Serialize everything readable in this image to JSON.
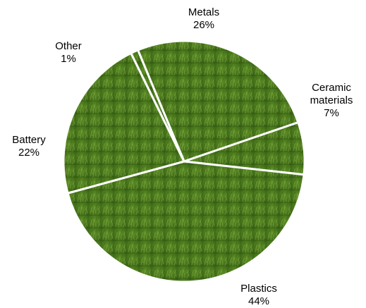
{
  "chart_data": {
    "type": "pie",
    "title": "",
    "slices": [
      {
        "label": "Metals",
        "display_label": [
          "Metals"
        ],
        "value": 26,
        "value_label": "26%"
      },
      {
        "label": "Ceramic materials",
        "display_label": [
          "Ceramic",
          "materials"
        ],
        "value": 7,
        "value_label": "7%"
      },
      {
        "label": "Plastics",
        "display_label": [
          "Plastics"
        ],
        "value": 44,
        "value_label": "44%"
      },
      {
        "label": "Battery",
        "display_label": [
          "Battery"
        ],
        "value": 22,
        "value_label": "22%"
      },
      {
        "label": "Other",
        "display_label": [
          "Other"
        ],
        "value": 1,
        "value_label": "1%"
      }
    ],
    "legend": "none",
    "slice_separator_color": "#ffffff",
    "fill_colors": [
      "#3f6a17",
      "#5a8a25",
      "#2f5410",
      "#77a33a"
    ]
  }
}
